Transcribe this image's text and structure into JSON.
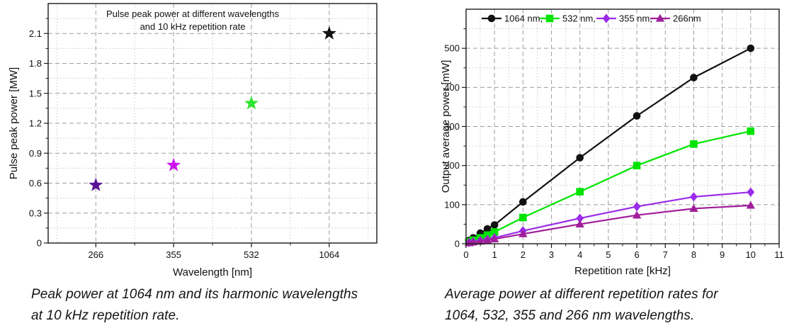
{
  "page": {
    "background": "#ffffff"
  },
  "figures": {
    "left": {
      "title_line1": "Pulse peak power at different wavelengths",
      "title_line2": "and 10 kHz repetition rate",
      "caption_line1": "Peak power at 1064 nm and its harmonic wavelengths",
      "caption_line2": "at 10 kHz repetition rate."
    },
    "right": {
      "caption_line1": "Average power at different repetition rates for",
      "caption_line2": "1064, 532, 355 and 266 nm wavelengths."
    }
  },
  "chart_data": [
    {
      "id": "peak-power-chart",
      "type": "scatter",
      "title": "Pulse peak power at different wavelengths and 10 kHz repetition rate",
      "title_lines": [
        "Pulse peak power at different wavelengths",
        "and 10 kHz repetition rate"
      ],
      "xlabel": "Wavelength [nm]",
      "ylabel": "Pulse peak power [MW]",
      "categories": [
        "266",
        "355",
        "532",
        "1064"
      ],
      "values": [
        0.58,
        0.78,
        1.4,
        2.1
      ],
      "point_colors": [
        "#5A1496",
        "#CB14F0",
        "#2FE52F",
        "#111111"
      ],
      "marker": "star",
      "ylim": [
        0,
        2.4
      ],
      "yticks": [
        0,
        0.3,
        0.6,
        0.9,
        1.2,
        1.5,
        1.8,
        2.1
      ],
      "y_minor_step": 0.15,
      "grid": "dashed-major-dotted-minor",
      "legend_position": "none"
    },
    {
      "id": "average-power-chart",
      "type": "line",
      "title": "",
      "xlabel": "Repetition rate [kHz]",
      "ylabel": "Output average power [mW]",
      "x": [
        0.1,
        0.25,
        0.5,
        0.75,
        1,
        2,
        4,
        6,
        8,
        10
      ],
      "series": [
        {
          "name": "1064 nm,",
          "color": "#111111",
          "marker": "circle",
          "values": [
            8,
            15,
            27,
            38,
            48,
            107,
            220,
            327,
            425,
            500
          ]
        },
        {
          "name": "532 nm,",
          "color": "#00E400",
          "marker": "square",
          "values": [
            5,
            9,
            15,
            22,
            30,
            67,
            133,
            200,
            255,
            288
          ]
        },
        {
          "name": "355 nm,",
          "color": "#9B2BEA",
          "marker": "diamond",
          "values": [
            3,
            5,
            8,
            11,
            15,
            33,
            65,
            95,
            120,
            132
          ]
        },
        {
          "name": "266nm",
          "color": "#A01E9B",
          "marker": "triangle",
          "values": [
            2,
            4,
            6,
            9,
            12,
            25,
            50,
            73,
            90,
            98
          ]
        }
      ],
      "xlim": [
        0,
        11
      ],
      "ylim": [
        0,
        600
      ],
      "xticks": [
        0,
        1,
        2,
        3,
        4,
        5,
        6,
        7,
        8,
        9,
        10,
        11
      ],
      "yticks": [
        0,
        100,
        200,
        300,
        400,
        500
      ],
      "x_minor_step": 0.5,
      "y_minor_step": 50,
      "grid": "dashed-major-dotted-minor",
      "legend_position": "top-inside"
    }
  ]
}
